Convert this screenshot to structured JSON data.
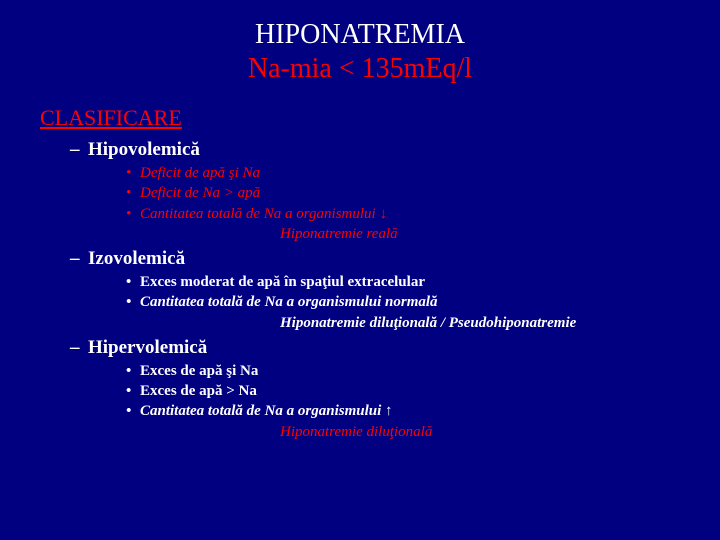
{
  "title": {
    "line1": "HIPONATREMIA",
    "line2": "Na-mia < 135mEq/l"
  },
  "section": "CLASIFICARE",
  "groups": [
    {
      "heading": "Hipovolemică",
      "items": [
        {
          "text": "Deficit de apă şi Na",
          "style": "red-italic"
        },
        {
          "text": "Deficit de Na > apă",
          "style": "red-italic"
        },
        {
          "text": "Cantitatea totală de Na a organismului ↓",
          "style": "red-italic"
        }
      ],
      "note": {
        "text": "Hiponatremie reală",
        "style": "note-red"
      }
    },
    {
      "heading": "Izovolemică",
      "items": [
        {
          "text": "Exces moderat de apă în spaţiul extracelular",
          "style": "white-bold"
        },
        {
          "text": "Cantitatea totală de Na a organismului normală",
          "style": "white-bold-italic"
        }
      ],
      "note": {
        "text": "Hiponatremie diluţională / Pseudohiponatremie",
        "style": "note-white-bold"
      }
    },
    {
      "heading": "Hipervolemică",
      "items": [
        {
          "text": "Exces de apă şi Na",
          "style": "white-bold"
        },
        {
          "text": "Exces de apă > Na",
          "style": "white-bold"
        },
        {
          "text": "Cantitatea totală de Na a organismului ↑",
          "style": "white-bold-italic"
        }
      ],
      "note": {
        "text": "Hiponatremie diluţională",
        "style": "note-red"
      }
    }
  ]
}
